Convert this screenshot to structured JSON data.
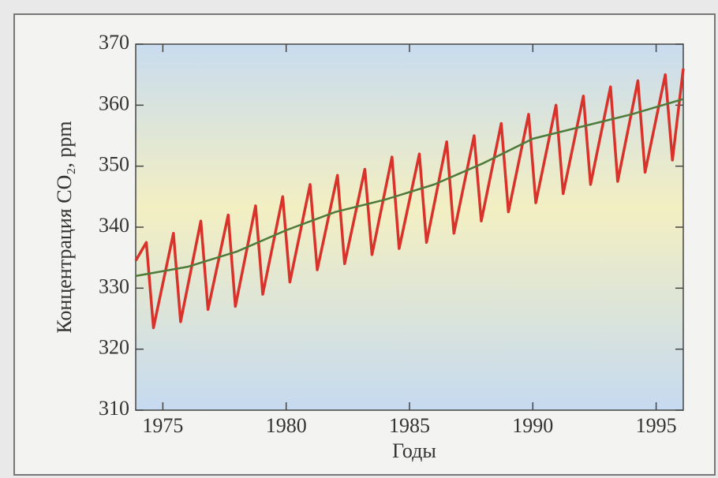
{
  "chart_data": {
    "type": "line",
    "xlabel": "Годы",
    "ylabel": "Концентрация CO₂, ppm",
    "xlim": [
      1973.9,
      1996.1
    ],
    "xticks": [
      1975,
      1980,
      1985,
      1990,
      1995
    ],
    "ylim": [
      310,
      370
    ],
    "yticks": [
      310,
      320,
      330,
      340,
      350,
      360,
      370
    ],
    "series": [
      {
        "color": "#d8322a",
        "x": [
          1973.9,
          1974.33,
          1974.62,
          1975.43,
          1975.72,
          1976.54,
          1976.83,
          1977.65,
          1977.94,
          1978.76,
          1979.05,
          1979.86,
          1980.15,
          1980.97,
          1981.26,
          1982.08,
          1982.37,
          1983.19,
          1983.48,
          1984.29,
          1984.58,
          1985.4,
          1985.69,
          1986.51,
          1986.8,
          1987.62,
          1987.91,
          1988.72,
          1989.01,
          1989.83,
          1990.12,
          1990.94,
          1991.23,
          1992.05,
          1992.34,
          1993.15,
          1993.44,
          1994.26,
          1994.55,
          1995.37,
          1995.66,
          1996.1
        ],
        "values": [
          334.5,
          337.5,
          323.5,
          339,
          324.5,
          341,
          326.5,
          342,
          327,
          343.5,
          329,
          345,
          331,
          347,
          333,
          348.5,
          334,
          349.5,
          335.5,
          351.5,
          336.5,
          352,
          337.5,
          354,
          339,
          355,
          341,
          357,
          342.5,
          358.5,
          344,
          360,
          345.5,
          361.5,
          347,
          363,
          347.5,
          364,
          349,
          365,
          351,
          366
        ]
      },
      {
        "color": "#4e7a3a",
        "x": [
          1973.9,
          1976,
          1978,
          1980,
          1982,
          1984,
          1986,
          1988,
          1990,
          1992,
          1994,
          1996.1
        ],
        "values": [
          332,
          333.5,
          336,
          339.5,
          342.5,
          344.5,
          347,
          350.5,
          354.5,
          356.5,
          358.5,
          361
        ]
      }
    ]
  }
}
